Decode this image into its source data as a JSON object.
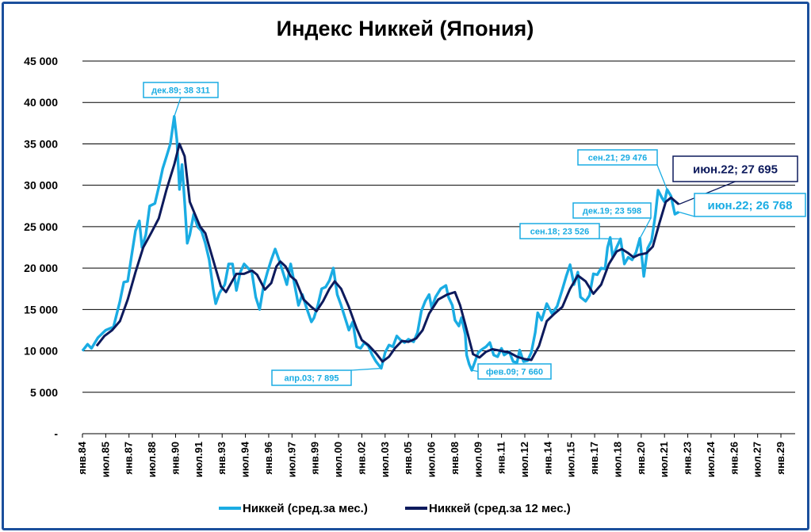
{
  "colors": {
    "monthly": "#1aace3",
    "yearly": "#0d1a5c",
    "grid": "#000000",
    "frame": "#1b4f9c"
  },
  "chart_data": {
    "type": "line",
    "title": "Индекс Никкей (Япония)",
    "y_ticks": [
      "-",
      "5 000",
      "10 000",
      "15 000",
      "20 000",
      "25 000",
      "30 000",
      "35 000",
      "40 000",
      "45 000"
    ],
    "ylim": [
      0,
      45000
    ],
    "grid": "horizontal",
    "x_range": [
      "1984-01",
      "2029-12"
    ],
    "x_ticks": [
      "янв.84",
      "июл.85",
      "янв.87",
      "июл.88",
      "янв.90",
      "июл.91",
      "янв.93",
      "июл.94",
      "янв.96",
      "июл.97",
      "янв.99",
      "июл.00",
      "янв.02",
      "июл.03",
      "янв.05",
      "июл.06",
      "янв.08",
      "июл.09",
      "янв.11",
      "июл.12",
      "янв.14",
      "июл.15",
      "янв.17",
      "июл.18",
      "янв.20",
      "июл.21",
      "янв.23",
      "июл.24",
      "янв.26",
      "июл.27",
      "янв.29"
    ],
    "legend_position": "bottom",
    "series": [
      {
        "name": "Никкей (сред.за мес.)",
        "points": [
          [
            "1984-01",
            10000
          ],
          [
            "1984-05",
            10800
          ],
          [
            "1984-08",
            10300
          ],
          [
            "1985-01",
            11600
          ],
          [
            "1985-07",
            12500
          ],
          [
            "1986-01",
            12900
          ],
          [
            "1986-06",
            16000
          ],
          [
            "1986-09",
            18300
          ],
          [
            "1986-12",
            18400
          ],
          [
            "1987-03",
            21500
          ],
          [
            "1987-06",
            24500
          ],
          [
            "1987-09",
            25700
          ],
          [
            "1987-11",
            22500
          ],
          [
            "1988-02",
            24000
          ],
          [
            "1988-05",
            27500
          ],
          [
            "1988-09",
            27800
          ],
          [
            "1988-12",
            29800
          ],
          [
            "1989-03",
            32000
          ],
          [
            "1989-06",
            33500
          ],
          [
            "1989-09",
            35000
          ],
          [
            "1989-12",
            38311
          ],
          [
            "1990-02",
            35500
          ],
          [
            "1990-04",
            29500
          ],
          [
            "1990-06",
            32500
          ],
          [
            "1990-08",
            28000
          ],
          [
            "1990-10",
            23000
          ],
          [
            "1990-12",
            24000
          ],
          [
            "1991-03",
            26500
          ],
          [
            "1991-06",
            25000
          ],
          [
            "1991-09",
            24500
          ],
          [
            "1991-12",
            23000
          ],
          [
            "1992-03",
            21000
          ],
          [
            "1992-06",
            17500
          ],
          [
            "1992-08",
            15700
          ],
          [
            "1992-11",
            17000
          ],
          [
            "1993-03",
            18000
          ],
          [
            "1993-06",
            20500
          ],
          [
            "1993-09",
            20500
          ],
          [
            "1993-12",
            17300
          ],
          [
            "1994-03",
            19500
          ],
          [
            "1994-06",
            20500
          ],
          [
            "1994-09",
            20000
          ],
          [
            "1994-12",
            19500
          ],
          [
            "1995-03",
            16500
          ],
          [
            "1995-06",
            15000
          ],
          [
            "1995-09",
            17800
          ],
          [
            "1995-12",
            19500
          ],
          [
            "1996-03",
            21000
          ],
          [
            "1996-06",
            22300
          ],
          [
            "1996-09",
            21000
          ],
          [
            "1996-12",
            19500
          ],
          [
            "1997-03",
            18000
          ],
          [
            "1997-06",
            20500
          ],
          [
            "1997-09",
            18000
          ],
          [
            "1997-12",
            15500
          ],
          [
            "1998-03",
            16800
          ],
          [
            "1998-06",
            15300
          ],
          [
            "1998-10",
            13500
          ],
          [
            "1998-12",
            14000
          ],
          [
            "1999-03",
            15500
          ],
          [
            "1999-06",
            17500
          ],
          [
            "1999-09",
            17700
          ],
          [
            "1999-12",
            18500
          ],
          [
            "2000-03",
            20000
          ],
          [
            "2000-06",
            16800
          ],
          [
            "2000-09",
            15500
          ],
          [
            "2000-12",
            14000
          ],
          [
            "2001-03",
            12500
          ],
          [
            "2001-06",
            13500
          ],
          [
            "2001-09",
            10500
          ],
          [
            "2001-12",
            10300
          ],
          [
            "2002-03",
            11000
          ],
          [
            "2002-06",
            10600
          ],
          [
            "2002-09",
            9500
          ],
          [
            "2002-12",
            8700
          ],
          [
            "2003-04",
            7895
          ],
          [
            "2003-07",
            9800
          ],
          [
            "2003-10",
            10700
          ],
          [
            "2004-01",
            10500
          ],
          [
            "2004-04",
            11800
          ],
          [
            "2004-07",
            11300
          ],
          [
            "2004-10",
            11000
          ],
          [
            "2005-01",
            11400
          ],
          [
            "2005-05",
            11100
          ],
          [
            "2005-08",
            12200
          ],
          [
            "2005-11",
            14800
          ],
          [
            "2006-02",
            16000
          ],
          [
            "2006-05",
            16800
          ],
          [
            "2006-07",
            15200
          ],
          [
            "2006-10",
            16500
          ],
          [
            "2007-02",
            17500
          ],
          [
            "2007-06",
            17900
          ],
          [
            "2007-08",
            16500
          ],
          [
            "2007-11",
            15500
          ],
          [
            "2008-01",
            13700
          ],
          [
            "2008-04",
            13000
          ],
          [
            "2008-06",
            14000
          ],
          [
            "2008-09",
            12000
          ],
          [
            "2008-10",
            9500
          ],
          [
            "2008-12",
            8400
          ],
          [
            "2009-02",
            7660
          ],
          [
            "2009-04",
            8500
          ],
          [
            "2009-07",
            9800
          ],
          [
            "2009-10",
            10200
          ],
          [
            "2010-01",
            10500
          ],
          [
            "2010-04",
            11000
          ],
          [
            "2010-07",
            9500
          ],
          [
            "2010-10",
            9300
          ],
          [
            "2011-01",
            10300
          ],
          [
            "2011-03",
            9500
          ],
          [
            "2011-07",
            9900
          ],
          [
            "2011-10",
            8700
          ],
          [
            "2012-01",
            8600
          ],
          [
            "2012-03",
            10100
          ],
          [
            "2012-06",
            8700
          ],
          [
            "2012-09",
            8800
          ],
          [
            "2012-12",
            9800
          ],
          [
            "2013-03",
            12200
          ],
          [
            "2013-05",
            14600
          ],
          [
            "2013-08",
            13700
          ],
          [
            "2013-12",
            15700
          ],
          [
            "2014-04",
            14500
          ],
          [
            "2014-08",
            15400
          ],
          [
            "2014-12",
            17400
          ],
          [
            "2015-03",
            19000
          ],
          [
            "2015-06",
            20400
          ],
          [
            "2015-09",
            18000
          ],
          [
            "2015-12",
            19500
          ],
          [
            "2016-02",
            16500
          ],
          [
            "2016-06",
            16000
          ],
          [
            "2016-09",
            16700
          ],
          [
            "2016-12",
            19300
          ],
          [
            "2017-03",
            19200
          ],
          [
            "2017-06",
            20000
          ],
          [
            "2017-09",
            19900
          ],
          [
            "2017-11",
            22500
          ],
          [
            "2018-01",
            23700
          ],
          [
            "2018-03",
            21300
          ],
          [
            "2018-06",
            22500
          ],
          [
            "2018-09",
            23526
          ],
          [
            "2018-12",
            20500
          ],
          [
            "2019-03",
            21300
          ],
          [
            "2019-06",
            21000
          ],
          [
            "2019-09",
            21900
          ],
          [
            "2019-12",
            23598
          ],
          [
            "2020-03",
            19000
          ],
          [
            "2020-06",
            22400
          ],
          [
            "2020-09",
            23300
          ],
          [
            "2020-12",
            26500
          ],
          [
            "2021-02",
            29400
          ],
          [
            "2021-05",
            28500
          ],
          [
            "2021-07",
            28000
          ],
          [
            "2021-09",
            29476
          ],
          [
            "2021-12",
            28700
          ],
          [
            "2022-03",
            26500
          ],
          [
            "2022-06",
            26768
          ]
        ]
      },
      {
        "name": "Никкей (сред.за 12 мес.)",
        "points": [
          [
            "1984-12",
            10600
          ],
          [
            "1985-06",
            11800
          ],
          [
            "1985-12",
            12500
          ],
          [
            "1986-06",
            13600
          ],
          [
            "1986-12",
            16200
          ],
          [
            "1987-06",
            19500
          ],
          [
            "1987-12",
            22500
          ],
          [
            "1988-06",
            24200
          ],
          [
            "1988-12",
            26000
          ],
          [
            "1989-06",
            29500
          ],
          [
            "1989-12",
            32500
          ],
          [
            "1990-04",
            35000
          ],
          [
            "1990-08",
            33500
          ],
          [
            "1990-12",
            28000
          ],
          [
            "1991-04",
            26500
          ],
          [
            "1991-08",
            25000
          ],
          [
            "1991-12",
            24200
          ],
          [
            "1992-06",
            21000
          ],
          [
            "1992-12",
            17800
          ],
          [
            "1993-04",
            17100
          ],
          [
            "1993-09",
            18500
          ],
          [
            "1993-12",
            19300
          ],
          [
            "1994-06",
            19300
          ],
          [
            "1994-12",
            19700
          ],
          [
            "1995-04",
            19200
          ],
          [
            "1995-10",
            17400
          ],
          [
            "1996-03",
            18200
          ],
          [
            "1996-07",
            20200
          ],
          [
            "1996-10",
            20800
          ],
          [
            "1997-02",
            20200
          ],
          [
            "1997-06",
            19000
          ],
          [
            "1997-10",
            18500
          ],
          [
            "1998-04",
            16200
          ],
          [
            "1998-10",
            15300
          ],
          [
            "1999-02",
            14800
          ],
          [
            "1999-07",
            16000
          ],
          [
            "1999-12",
            17500
          ],
          [
            "2000-04",
            18400
          ],
          [
            "2000-09",
            17500
          ],
          [
            "2001-03",
            15300
          ],
          [
            "2001-09",
            12700
          ],
          [
            "2002-01",
            11300
          ],
          [
            "2002-06",
            10700
          ],
          [
            "2002-12",
            9700
          ],
          [
            "2003-05",
            8700
          ],
          [
            "2003-10",
            9300
          ],
          [
            "2004-03",
            10400
          ],
          [
            "2004-08",
            11200
          ],
          [
            "2005-01",
            11100
          ],
          [
            "2005-07",
            11500
          ],
          [
            "2005-12",
            12500
          ],
          [
            "2006-05",
            14500
          ],
          [
            "2006-12",
            16200
          ],
          [
            "2007-07",
            16800
          ],
          [
            "2008-01",
            17100
          ],
          [
            "2008-05",
            15500
          ],
          [
            "2008-09",
            13200
          ],
          [
            "2009-03",
            9600
          ],
          [
            "2009-08",
            9200
          ],
          [
            "2010-01",
            9900
          ],
          [
            "2010-06",
            10200
          ],
          [
            "2011-01",
            10000
          ],
          [
            "2011-07",
            9800
          ],
          [
            "2012-01",
            9300
          ],
          [
            "2012-07",
            9000
          ],
          [
            "2012-12",
            8900
          ],
          [
            "2013-06",
            10600
          ],
          [
            "2013-12",
            13600
          ],
          [
            "2014-06",
            14500
          ],
          [
            "2014-12",
            15300
          ],
          [
            "2015-06",
            17500
          ],
          [
            "2015-12",
            19100
          ],
          [
            "2016-06",
            18400
          ],
          [
            "2016-12",
            16900
          ],
          [
            "2017-06",
            18000
          ],
          [
            "2017-12",
            20500
          ],
          [
            "2018-06",
            22000
          ],
          [
            "2018-10",
            22300
          ],
          [
            "2019-03",
            21800
          ],
          [
            "2019-07",
            21300
          ],
          [
            "2019-11",
            21600
          ],
          [
            "2020-05",
            21800
          ],
          [
            "2020-10",
            22600
          ],
          [
            "2021-03",
            25400
          ],
          [
            "2021-08",
            28000
          ],
          [
            "2021-12",
            28500
          ],
          [
            "2022-06",
            27695
          ]
        ]
      }
    ],
    "annotations": [
      {
        "text": "дек.89;  38 311",
        "x": "1989-12",
        "y": 38311,
        "series": 0
      },
      {
        "text": "апр.03;  7 895",
        "x": "2003-04",
        "y": 7895,
        "series": 0
      },
      {
        "text": "фев.09;  7 660",
        "x": "2009-02",
        "y": 7660,
        "series": 0
      },
      {
        "text": "сен.18;  23 526",
        "x": "2018-09",
        "y": 23526,
        "series": 0
      },
      {
        "text": "дек.19;  23 598",
        "x": "2019-12",
        "y": 23598,
        "series": 0
      },
      {
        "text": "сен.21;  29 476",
        "x": "2021-09",
        "y": 29476,
        "series": 0
      },
      {
        "text": "июн.22;  27 695",
        "x": "2022-06",
        "y": 27695,
        "series": 1
      },
      {
        "text": "июн.22;  26 768",
        "x": "2022-06",
        "y": 26768,
        "series": 0
      }
    ]
  }
}
